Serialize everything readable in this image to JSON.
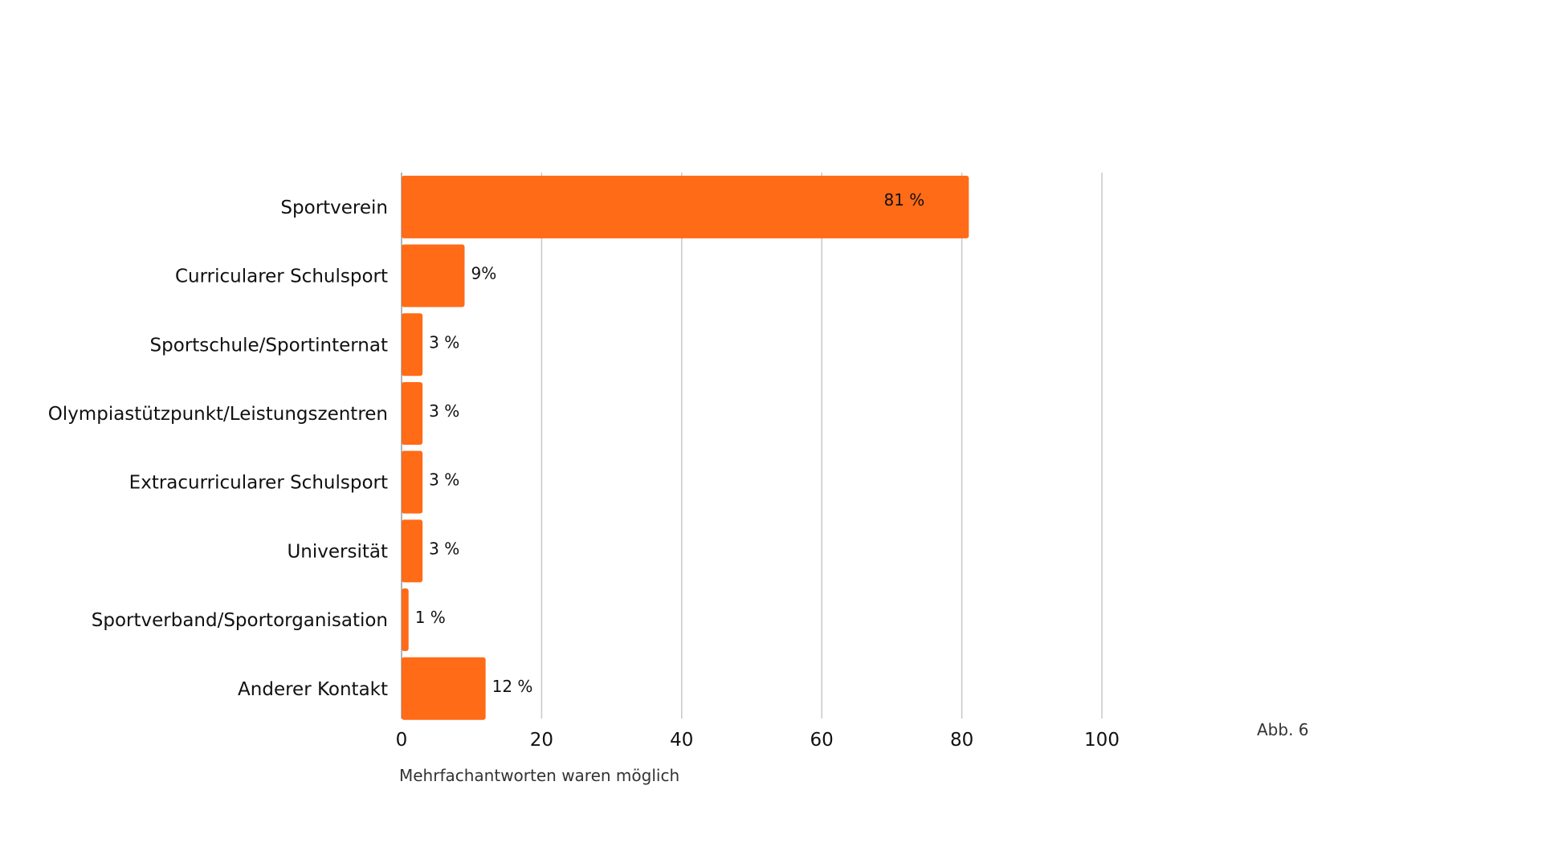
{
  "chart_data": {
    "type": "bar",
    "orientation": "horizontal",
    "categories": [
      "Sportverein",
      "Curricularer Schulsport",
      "Sportschule/Sportinternat",
      "Olympiastützpunkt/Leistungszentren",
      "Extracurricularer Schulsport",
      "Universität",
      "Sportverband/Sportorganisation",
      "Anderer Kontakt"
    ],
    "values": [
      81,
      9,
      3,
      3,
      3,
      3,
      1,
      12
    ],
    "value_labels": [
      "81 %",
      "9%",
      "3 %",
      "3 %",
      "3 %",
      "3 %",
      "1 %",
      "12 %"
    ],
    "xlim": [
      0,
      100
    ],
    "xticks": [
      "0",
      "20",
      "40",
      "60",
      "80",
      "100"
    ],
    "grid": true,
    "title": "",
    "xlabel": "",
    "ylabel": "",
    "note": "Mehrfachantworten waren möglich",
    "figure_label": "Abb. 6",
    "bar_color": "#FF6B17",
    "grid_color": "#C8C8C8"
  }
}
